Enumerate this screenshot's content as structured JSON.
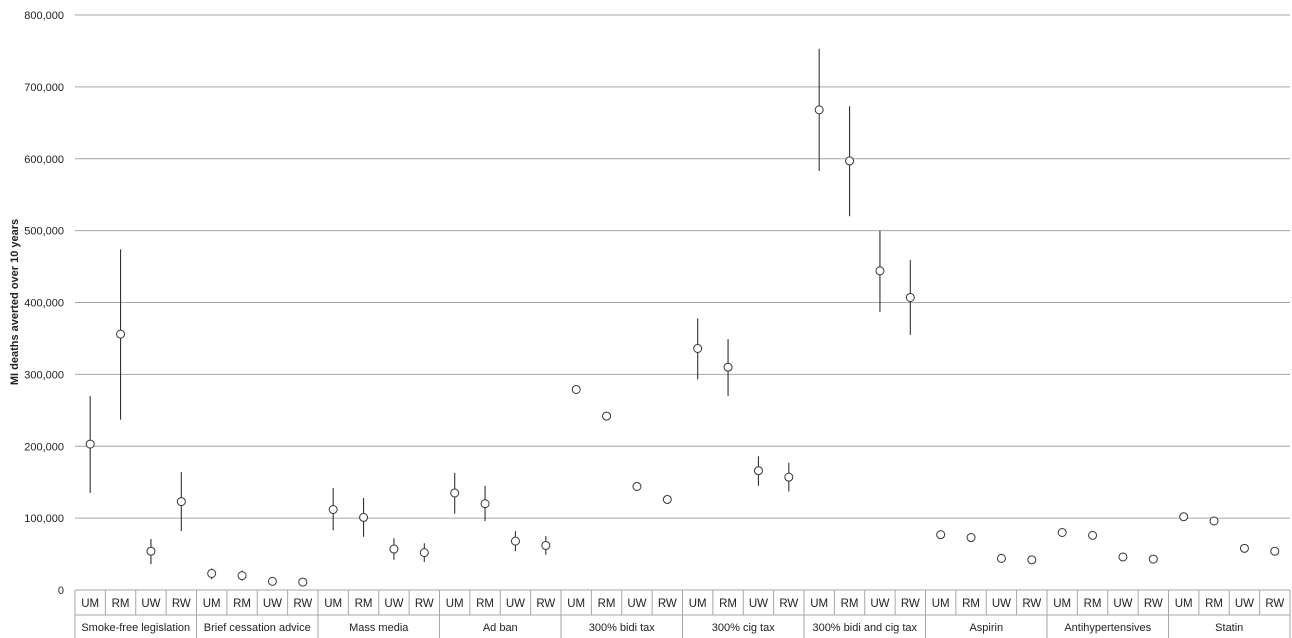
{
  "chart_data": {
    "type": "scatter",
    "ylabel": "MI deaths averted over 10 years",
    "ylim": [
      0,
      800000
    ],
    "yticks": [
      "0",
      "100,000",
      "200,000",
      "300,000",
      "400,000",
      "500,000",
      "600,000",
      "700,000",
      "800,000"
    ],
    "ytick_values": [
      0,
      100000,
      200000,
      300000,
      400000,
      500000,
      600000,
      700000,
      800000
    ],
    "grid": "horizontal",
    "subcategories": [
      "UM",
      "RM",
      "UW",
      "RW"
    ],
    "groups": [
      {
        "name": "Smoke-free legislation",
        "points": [
          {
            "sub": "UM",
            "value": 203000,
            "low": 135000,
            "high": 270000
          },
          {
            "sub": "RM",
            "value": 356000,
            "low": 237000,
            "high": 474000
          },
          {
            "sub": "UW",
            "value": 54000,
            "low": 36000,
            "high": 71000
          },
          {
            "sub": "RW",
            "value": 123000,
            "low": 82000,
            "high": 164000
          }
        ]
      },
      {
        "name": "Brief cessation advice",
        "points": [
          {
            "sub": "UM",
            "value": 23000,
            "low": 15000,
            "high": 30000
          },
          {
            "sub": "RM",
            "value": 20000,
            "low": 13000,
            "high": 27000
          },
          {
            "sub": "UW",
            "value": 12000,
            "low": null,
            "high": null
          },
          {
            "sub": "RW",
            "value": 11000,
            "low": null,
            "high": null
          }
        ]
      },
      {
        "name": "Mass media",
        "points": [
          {
            "sub": "UM",
            "value": 112000,
            "low": 83000,
            "high": 142000
          },
          {
            "sub": "RM",
            "value": 101000,
            "low": 74000,
            "high": 128000
          },
          {
            "sub": "UW",
            "value": 57000,
            "low": 42000,
            "high": 72000
          },
          {
            "sub": "RW",
            "value": 52000,
            "low": 39000,
            "high": 65000
          }
        ]
      },
      {
        "name": "Ad ban",
        "points": [
          {
            "sub": "UM",
            "value": 135000,
            "low": 106000,
            "high": 163000
          },
          {
            "sub": "RM",
            "value": 120000,
            "low": 96000,
            "high": 145000
          },
          {
            "sub": "UW",
            "value": 68000,
            "low": 54000,
            "high": 82000
          },
          {
            "sub": "RW",
            "value": 62000,
            "low": 49000,
            "high": 75000
          }
        ]
      },
      {
        "name": "300% bidi tax",
        "points": [
          {
            "sub": "UM",
            "value": 279000,
            "low": null,
            "high": null
          },
          {
            "sub": "RM",
            "value": 242000,
            "low": null,
            "high": null
          },
          {
            "sub": "UW",
            "value": 144000,
            "low": null,
            "high": null
          },
          {
            "sub": "RW",
            "value": 126000,
            "low": null,
            "high": null
          }
        ]
      },
      {
        "name": "300% cig tax",
        "points": [
          {
            "sub": "UM",
            "value": 336000,
            "low": 293000,
            "high": 378000
          },
          {
            "sub": "RM",
            "value": 310000,
            "low": 270000,
            "high": 349000
          },
          {
            "sub": "UW",
            "value": 166000,
            "low": 145000,
            "high": 186000
          },
          {
            "sub": "RW",
            "value": 157000,
            "low": 137000,
            "high": 177000
          }
        ]
      },
      {
        "name": "300% bidi and cig tax",
        "points": [
          {
            "sub": "UM",
            "value": 668000,
            "low": 583000,
            "high": 753000
          },
          {
            "sub": "RM",
            "value": 597000,
            "low": 520000,
            "high": 673000
          },
          {
            "sub": "UW",
            "value": 444000,
            "low": 387000,
            "high": 500000
          },
          {
            "sub": "RW",
            "value": 407000,
            "low": 355000,
            "high": 459000
          }
        ]
      },
      {
        "name": "Aspirin",
        "points": [
          {
            "sub": "UM",
            "value": 77000,
            "low": null,
            "high": null
          },
          {
            "sub": "RM",
            "value": 73000,
            "low": null,
            "high": null
          },
          {
            "sub": "UW",
            "value": 44000,
            "low": null,
            "high": null
          },
          {
            "sub": "RW",
            "value": 42000,
            "low": null,
            "high": null
          }
        ]
      },
      {
        "name": "Antihypertensives",
        "points": [
          {
            "sub": "UM",
            "value": 80000,
            "low": null,
            "high": null
          },
          {
            "sub": "RM",
            "value": 76000,
            "low": null,
            "high": null
          },
          {
            "sub": "UW",
            "value": 46000,
            "low": null,
            "high": null
          },
          {
            "sub": "RW",
            "value": 43000,
            "low": null,
            "high": null
          }
        ]
      },
      {
        "name": "Statin",
        "points": [
          {
            "sub": "UM",
            "value": 102000,
            "low": null,
            "high": null
          },
          {
            "sub": "RM",
            "value": 96000,
            "low": null,
            "high": null
          },
          {
            "sub": "UW",
            "value": 58000,
            "low": null,
            "high": null
          },
          {
            "sub": "RW",
            "value": 54000,
            "low": null,
            "high": null
          }
        ]
      }
    ],
    "colors": {
      "grid": "#a6a6a6",
      "marker_fill": "#ffffff",
      "marker_stroke": "#333333",
      "errorbar": "#333333"
    }
  }
}
